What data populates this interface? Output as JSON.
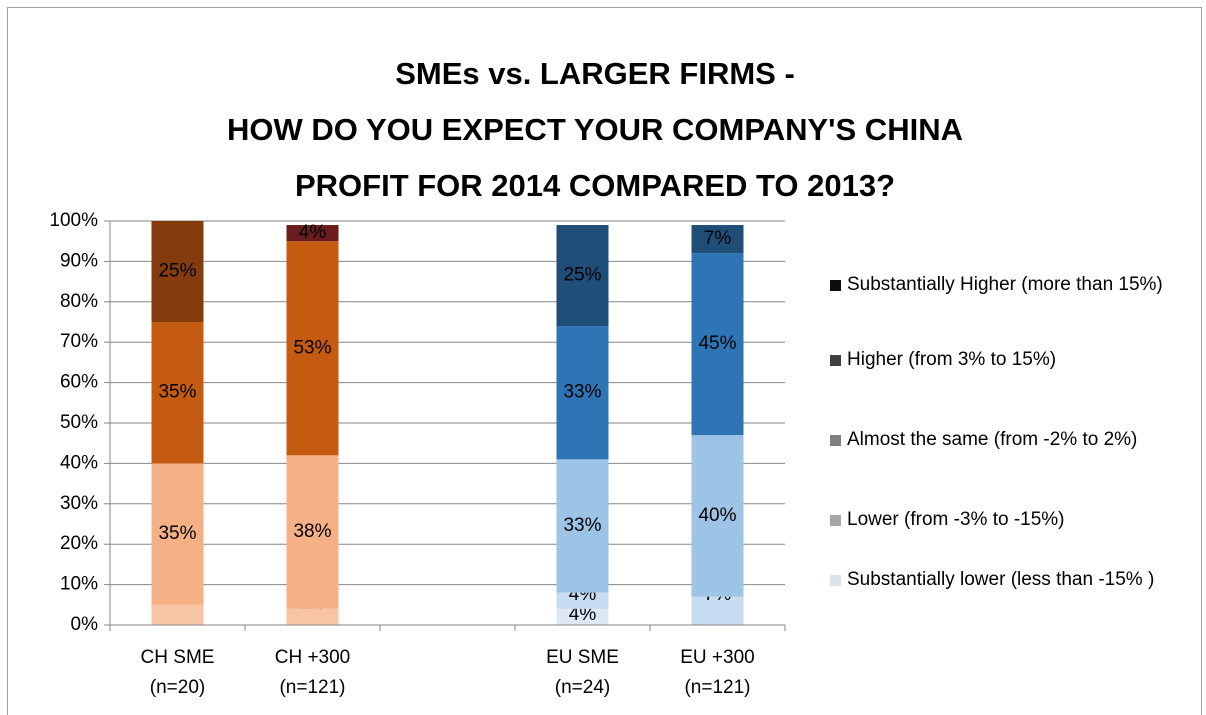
{
  "chart_data": {
    "type": "bar",
    "stacked": true,
    "title": "SMEs vs. LARGER FIRMS -\nHOW DO YOU EXPECT YOUR COMPANY'S CHINA\nPROFIT FOR 2014 COMPARED TO 2013?",
    "categories": [
      "CH SME (n=20)",
      "CH +300 (n=121)",
      null,
      "EU SME (n=24)",
      "EU +300 (n=121)"
    ],
    "ylim": [
      0,
      100
    ],
    "yticks": [
      {
        "value": 0,
        "label": "0%"
      },
      {
        "value": 10,
        "label": "10%"
      },
      {
        "value": 20,
        "label": "20%"
      },
      {
        "value": 30,
        "label": "30%"
      },
      {
        "value": 40,
        "label": "40%"
      },
      {
        "value": 50,
        "label": "50%"
      },
      {
        "value": 60,
        "label": "60%"
      },
      {
        "value": 70,
        "label": "70%"
      },
      {
        "value": 80,
        "label": "80%"
      },
      {
        "value": 90,
        "label": "90%"
      },
      {
        "value": 100,
        "label": "100%"
      }
    ],
    "grid": true,
    "legend": "right",
    "series": [
      {
        "name": "Substantially lower (less than -15% )",
        "color": "#dde3ee",
        "colors": [
          "#f9d4bd",
          "#f9d4bd",
          null,
          "#dce8f6",
          "#dce8f6"
        ],
        "values": [
          0,
          0,
          null,
          4,
          0
        ],
        "value_labels": [
          "0%",
          "0%",
          null,
          "4%",
          "0%"
        ]
      },
      {
        "name": "Lower (from -3% to -15%)",
        "color": "#a6a6a6",
        "colors": [
          "#f7c4a4",
          "#f7c4a4",
          null,
          "#c7dbf1",
          "#c7dbf1"
        ],
        "values": [
          5,
          4,
          null,
          4,
          7
        ],
        "value_labels": [
          "5%",
          "4%",
          null,
          "4%",
          "7%"
        ]
      },
      {
        "name": "Almost the same (from -2% to 2%)",
        "color": "#808080",
        "colors": [
          "#f5b185",
          "#f5b185",
          null,
          "#9dc3e6",
          "#9dc3e6"
        ],
        "values": [
          35,
          38,
          null,
          33,
          40
        ],
        "value_labels": [
          "35%",
          "38%",
          null,
          "33%",
          "40%"
        ]
      },
      {
        "name": "Higher (from 3% to 15%)",
        "color": "#404040",
        "colors": [
          "#c55a11",
          "#c55a11",
          null,
          "#2e75b6",
          "#2e75b6"
        ],
        "values": [
          35,
          53,
          null,
          33,
          45
        ],
        "value_labels": [
          "35%",
          "53%",
          null,
          "33%",
          "45%"
        ]
      },
      {
        "name": "Substantially Higher (more than 15%)",
        "color": "#0d0d0d",
        "colors": [
          "#843c0c",
          "#6b1d1d",
          null,
          "#1f4e79",
          "#1f4e79"
        ],
        "values": [
          25,
          4,
          null,
          25,
          7
        ],
        "value_labels": [
          "25%",
          "4%",
          null,
          "25%",
          "7%"
        ]
      }
    ]
  }
}
